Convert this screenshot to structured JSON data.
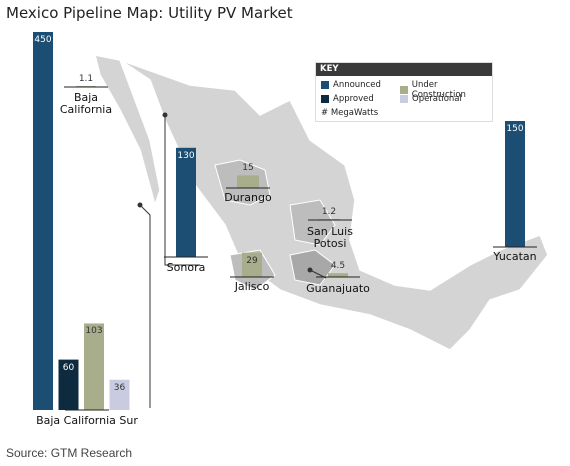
{
  "title": "Mexico Pipeline Map: Utility PV Market",
  "source": "Source: GTM Research",
  "key": {
    "title": "KEY",
    "items": [
      {
        "label": "Announced",
        "color": "#1c4e74"
      },
      {
        "label": "Approved",
        "color": "#0e2a3f"
      },
      {
        "label": "Under Construction",
        "color": "#a8ad8b"
      },
      {
        "label": "Operational",
        "color": "#c9cce0"
      }
    ],
    "unit_label": "# MegaWatts"
  },
  "regions": [
    {
      "name": "Baja California",
      "values": [
        null,
        null,
        1.1,
        null
      ]
    },
    {
      "name": "Baja California Sur",
      "values": [
        450,
        60,
        103,
        36
      ]
    },
    {
      "name": "Sonora",
      "values": [
        130,
        null,
        null,
        null
      ]
    },
    {
      "name": "Durango",
      "values": [
        null,
        null,
        15,
        null
      ]
    },
    {
      "name": "Jalisco",
      "values": [
        null,
        null,
        29,
        null
      ]
    },
    {
      "name": "San Luis Potosi",
      "values": [
        null,
        null,
        1.2,
        null
      ]
    },
    {
      "name": "Guanajuato",
      "values": [
        null,
        null,
        4.5,
        null
      ]
    },
    {
      "name": "Yucatan",
      "values": [
        150,
        null,
        null,
        null
      ]
    }
  ]
}
